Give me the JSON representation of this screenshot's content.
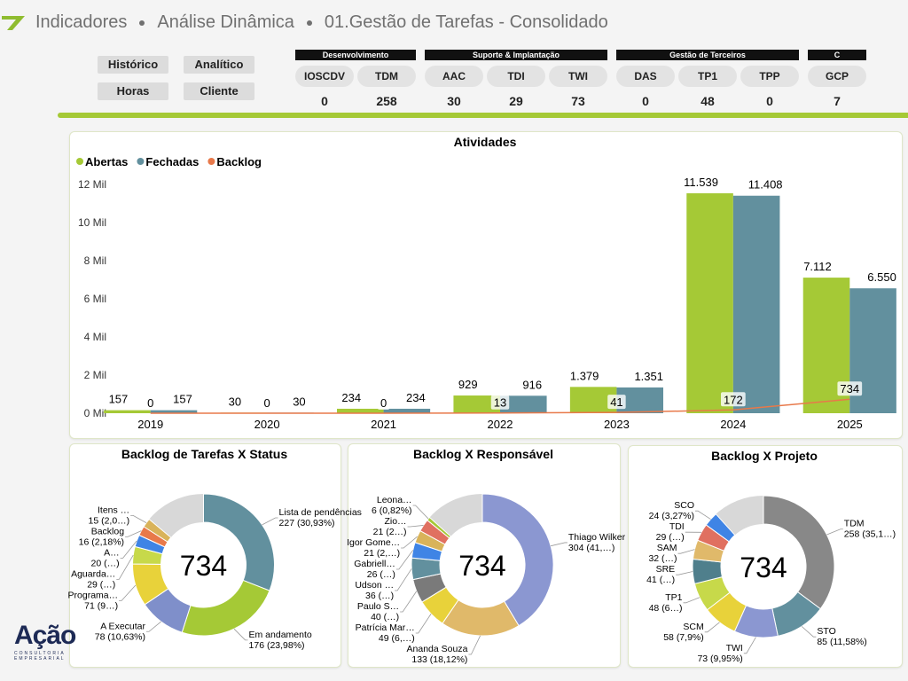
{
  "header": {
    "breadcrumb": [
      "Indicadores",
      "Análise Dinâmica",
      "01.Gestão de Tarefas - Consolidado"
    ]
  },
  "buttons": [
    "Histórico",
    "Analítico",
    "Horas",
    "Cliente"
  ],
  "kpi_groups": [
    {
      "title": "Desenvolvimento",
      "items": [
        {
          "label": "IOSCDV",
          "value": 0
        },
        {
          "label": "TDM",
          "value": 258
        }
      ]
    },
    {
      "title": "Suporte & Implantação",
      "items": [
        {
          "label": "AAC",
          "value": 30
        },
        {
          "label": "TDI",
          "value": 29
        },
        {
          "label": "TWI",
          "value": 73
        }
      ]
    },
    {
      "title": "Gestão de Terceiros",
      "items": [
        {
          "label": "DAS",
          "value": 0
        },
        {
          "label": "TP1",
          "value": 48
        },
        {
          "label": "TPP",
          "value": 0
        }
      ]
    },
    {
      "title": "C",
      "items": [
        {
          "label": "GCP",
          "value": 7
        }
      ]
    }
  ],
  "logo": {
    "name": "Ação",
    "tagline": "CONSULTORIA EMPRESARIAL"
  },
  "chart_data": [
    {
      "type": "bar",
      "title": "Atividades",
      "categories": [
        "2019",
        "2020",
        "2021",
        "2022",
        "2023",
        "2024",
        "2025"
      ],
      "series": [
        {
          "name": "Abertas",
          "color": "#a5c936",
          "values": [
            157,
            30,
            234,
            929,
            1379,
            11539,
            7112
          ],
          "value_labels": [
            "157",
            "30",
            "234",
            "929",
            "1.379",
            "11.539",
            "7.112"
          ]
        },
        {
          "name": "Fechadas",
          "color": "#62909e",
          "values": [
            157,
            30,
            234,
            916,
            1351,
            11408,
            6550
          ],
          "value_labels": [
            "157",
            "30",
            "234",
            "916",
            "1.351",
            "11.408",
            "6.550"
          ]
        },
        {
          "name": "Backlog",
          "type": "line",
          "color": "#e8794a",
          "values": [
            0,
            0,
            0,
            13,
            41,
            172,
            734
          ]
        }
      ],
      "ylim": [
        0,
        12000
      ],
      "yticks": [
        {
          "value": 0,
          "label": "0 Mil"
        },
        {
          "value": 2000,
          "label": "2 Mil"
        },
        {
          "value": 4000,
          "label": "4 Mil"
        },
        {
          "value": 6000,
          "label": "6 Mil"
        },
        {
          "value": 8000,
          "label": "8 Mil"
        },
        {
          "value": 10000,
          "label": "10 Mil"
        },
        {
          "value": 12000,
          "label": "12 Mil"
        }
      ],
      "grid": false,
      "legend": "top-left"
    },
    {
      "type": "pie",
      "donut": true,
      "title": "Backlog de Tarefas X Status",
      "total": 734,
      "categories": [
        "Lista de pendências",
        "Em andamento",
        "A Executar",
        "Programa…",
        "Aguarda…",
        "A…",
        "Backlog",
        "Itens …"
      ],
      "values": [
        227,
        176,
        78,
        71,
        29,
        20,
        16,
        15
      ],
      "value_labels": [
        "227 (30,93%)",
        "176 (23,98%)",
        "78 (10,63%)",
        "71 (9…)",
        "29 (…)",
        "20 (…)",
        "16 (2,18%)",
        "15 (2,0…)"
      ],
      "colors": [
        "#62909e",
        "#a5c936",
        "#7f8fca",
        "#e8d23a",
        "#c7d94a",
        "#3f84e5",
        "#e8794a",
        "#d9b35a"
      ]
    },
    {
      "type": "pie",
      "donut": true,
      "title": "Backlog X Responsável",
      "total": 734,
      "categories": [
        "Thiago Wilker",
        "Ananda Souza",
        "Patrícia Mar…",
        "Paulo S…",
        "Udson …",
        "Gabriell…",
        "Igor Gome…",
        "Zio…",
        "Leona…"
      ],
      "values": [
        304,
        133,
        49,
        40,
        36,
        26,
        21,
        21,
        6
      ],
      "value_labels": [
        "304 (41,…)",
        "133 (18,12%)",
        "49 (6,…)",
        "40 (…)",
        "36 (…)",
        "26 (…)",
        "21 (2,…)",
        "21 (2…)",
        "6 (0,82%)"
      ],
      "colors": [
        "#8b97d1",
        "#e0b96a",
        "#e8d23a",
        "#7a7a7a",
        "#62909e",
        "#3f84e5",
        "#d9b35a",
        "#e07060",
        "#a5c936"
      ]
    },
    {
      "type": "pie",
      "donut": true,
      "title": "Backlog X Projeto",
      "total": 734,
      "categories": [
        "TDM",
        "STO",
        "TWI",
        "SCM",
        "TP1",
        "SRE",
        "SAM",
        "TDI",
        "SCO"
      ],
      "values": [
        258,
        85,
        73,
        58,
        48,
        41,
        32,
        29,
        24
      ],
      "value_labels": [
        "258 (35,1…)",
        "85 (11,58%)",
        "73 (9,95%)",
        "58 (7,9%)",
        "48 (6…)",
        "41 (…)",
        "32 (…)",
        "29 (…)",
        "24 (3,27%)"
      ],
      "colors": [
        "#888888",
        "#62909e",
        "#8b97d1",
        "#e8d23a",
        "#c7d94a",
        "#4f7f8c",
        "#e0b96a",
        "#e07060",
        "#3f84e5"
      ]
    }
  ]
}
